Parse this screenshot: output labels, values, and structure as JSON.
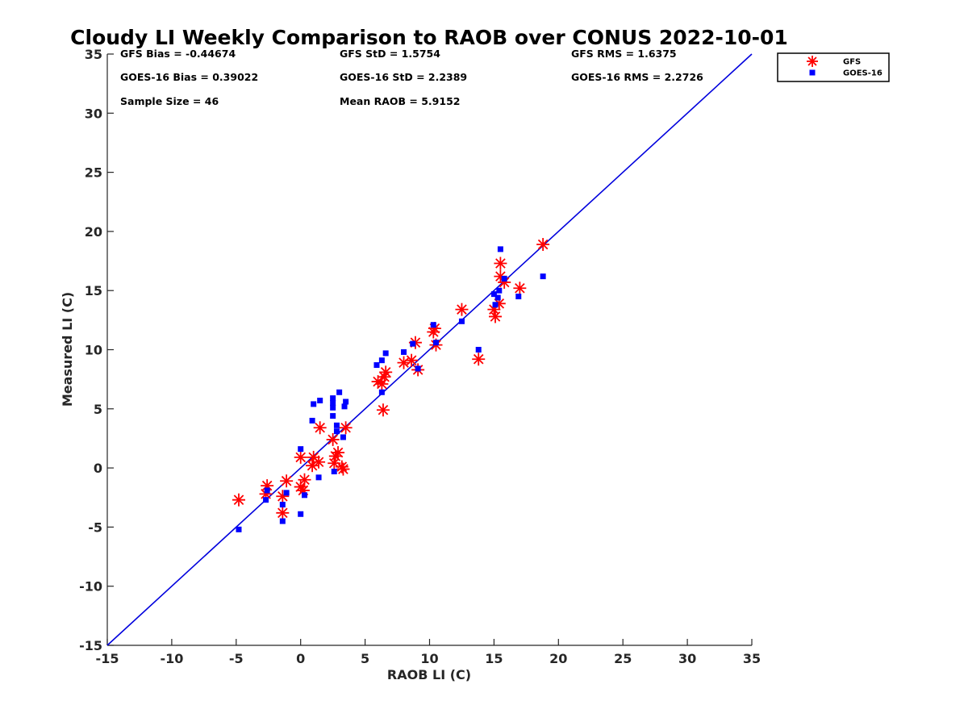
{
  "chart_data": {
    "type": "scatter",
    "title": "Cloudy LI Weekly Comparison to RAOB over CONUS 2022-10-01",
    "xlabel": "RAOB LI (C)",
    "ylabel": "Measured LI (C)",
    "xlim": [
      -15,
      35
    ],
    "ylim": [
      -15,
      35
    ],
    "xticks": [
      -15,
      -10,
      -5,
      0,
      5,
      10,
      15,
      20,
      25,
      30,
      35
    ],
    "yticks": [
      -15,
      -10,
      -5,
      0,
      5,
      10,
      15,
      20,
      25,
      30,
      35
    ],
    "grid": false,
    "legend_position": "top-right-outside",
    "reference_line": {
      "name": "1:1 line",
      "color": "#0000dd",
      "from": [
        -15,
        -15
      ],
      "to": [
        35,
        35
      ]
    },
    "stats": [
      "GFS Bias = -0.44674",
      "GFS StD = 1.5754",
      "GFS RMS = 1.6375",
      "GOES-16 Bias = 0.39022",
      "GOES-16 StD = 2.2389",
      "GOES-16 RMS = 2.2726",
      "Sample Size = 46",
      "Mean RAOB = 5.9152"
    ],
    "series": [
      {
        "name": "GFS",
        "marker": "asterisk",
        "color": "#ff0000",
        "points": [
          [
            -4.8,
            -2.7
          ],
          [
            -2.6,
            -1.5
          ],
          [
            -2.7,
            -2.2
          ],
          [
            -1.4,
            -2.4
          ],
          [
            -1.4,
            -3.8
          ],
          [
            -1.1,
            -1.1
          ],
          [
            0.0,
            -1.6
          ],
          [
            0.3,
            -1.0
          ],
          [
            0.2,
            -1.9
          ],
          [
            0.0,
            0.9
          ],
          [
            0.9,
            0.2
          ],
          [
            1.0,
            0.9
          ],
          [
            1.4,
            0.5
          ],
          [
            1.5,
            3.4
          ],
          [
            2.5,
            2.4
          ],
          [
            2.6,
            0.4
          ],
          [
            2.7,
            1.0
          ],
          [
            2.9,
            1.3
          ],
          [
            3.2,
            0.1
          ],
          [
            3.3,
            -0.1
          ],
          [
            3.5,
            3.4
          ],
          [
            6.0,
            7.3
          ],
          [
            6.3,
            7.1
          ],
          [
            6.5,
            7.7
          ],
          [
            6.6,
            8.1
          ],
          [
            6.4,
            4.9
          ],
          [
            8.0,
            8.9
          ],
          [
            8.6,
            9.1
          ],
          [
            8.9,
            10.6
          ],
          [
            9.1,
            8.3
          ],
          [
            10.3,
            11.5
          ],
          [
            10.4,
            11.8
          ],
          [
            10.5,
            10.4
          ],
          [
            12.5,
            13.4
          ],
          [
            13.8,
            9.2
          ],
          [
            15.0,
            13.4
          ],
          [
            15.1,
            12.8
          ],
          [
            15.4,
            13.9
          ],
          [
            15.5,
            17.3
          ],
          [
            15.5,
            16.2
          ],
          [
            15.8,
            15.7
          ],
          [
            17.0,
            15.2
          ],
          [
            18.8,
            18.9
          ]
        ]
      },
      {
        "name": "GOES-16",
        "marker": "square",
        "color": "#0000ff",
        "points": [
          [
            -4.8,
            -5.2
          ],
          [
            -2.7,
            -2.7
          ],
          [
            -2.6,
            -1.9
          ],
          [
            -1.4,
            -3.1
          ],
          [
            -1.4,
            -4.5
          ],
          [
            -1.1,
            -2.1
          ],
          [
            0.0,
            1.6
          ],
          [
            0.0,
            -3.9
          ],
          [
            0.3,
            -2.3
          ],
          [
            0.9,
            4.0
          ],
          [
            1.0,
            5.4
          ],
          [
            1.4,
            -0.8
          ],
          [
            1.5,
            5.7
          ],
          [
            2.5,
            5.5
          ],
          [
            2.5,
            5.9
          ],
          [
            2.5,
            5.1
          ],
          [
            2.5,
            4.4
          ],
          [
            2.6,
            -0.3
          ],
          [
            2.8,
            3.1
          ],
          [
            2.8,
            3.6
          ],
          [
            3.0,
            6.4
          ],
          [
            3.3,
            2.6
          ],
          [
            3.4,
            5.2
          ],
          [
            3.5,
            5.6
          ],
          [
            5.9,
            8.7
          ],
          [
            6.3,
            9.1
          ],
          [
            6.3,
            6.4
          ],
          [
            6.6,
            9.7
          ],
          [
            8.0,
            9.8
          ],
          [
            8.7,
            10.5
          ],
          [
            9.1,
            8.4
          ],
          [
            10.3,
            12.1
          ],
          [
            10.5,
            10.6
          ],
          [
            12.5,
            12.4
          ],
          [
            13.8,
            10.0
          ],
          [
            15.0,
            14.7
          ],
          [
            15.1,
            13.8
          ],
          [
            15.3,
            14.4
          ],
          [
            15.4,
            15.0
          ],
          [
            15.5,
            18.5
          ],
          [
            15.8,
            16.0
          ],
          [
            16.9,
            14.5
          ],
          [
            18.8,
            16.2
          ]
        ]
      }
    ]
  }
}
